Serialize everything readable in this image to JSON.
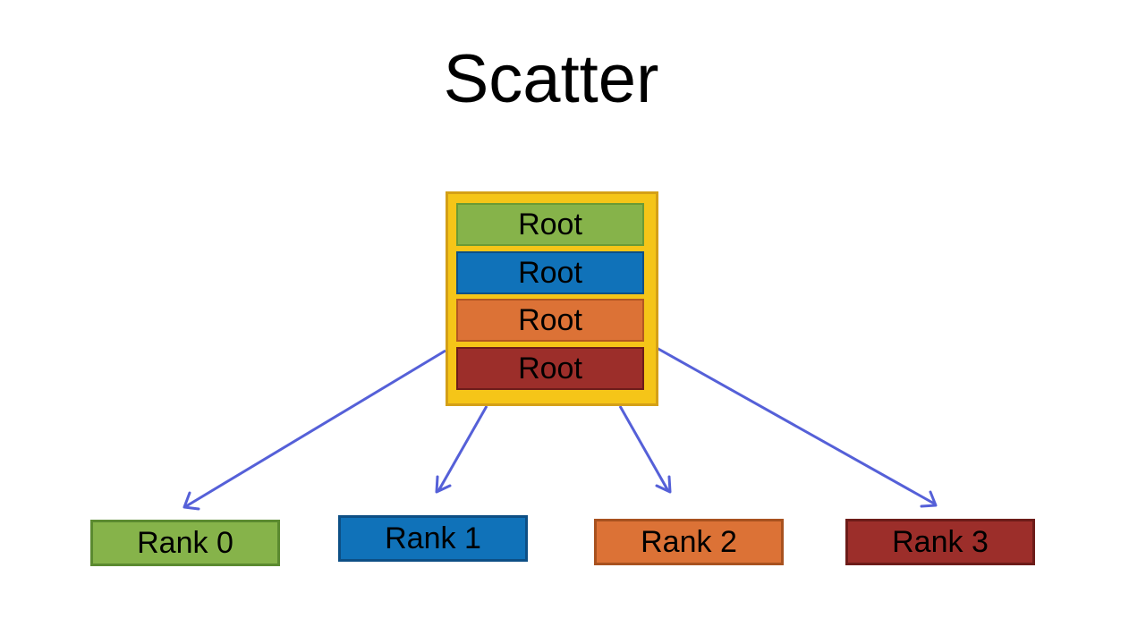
{
  "title": "Scatter",
  "colors": {
    "green": "#86b34a",
    "blue": "#1072b9",
    "orange": "#dc7236",
    "red": "#9c2e2a",
    "container_fill": "#f5c518",
    "container_border": "#d4a017",
    "arrow": "#5560d8"
  },
  "root_blocks": [
    {
      "label": "Root",
      "color": "green"
    },
    {
      "label": "Root",
      "color": "blue"
    },
    {
      "label": "Root",
      "color": "orange"
    },
    {
      "label": "Root",
      "color": "red"
    }
  ],
  "ranks": [
    {
      "label": "Rank 0",
      "color": "green"
    },
    {
      "label": "Rank 1",
      "color": "blue"
    },
    {
      "label": "Rank 2",
      "color": "orange"
    },
    {
      "label": "Rank 3",
      "color": "red"
    }
  ]
}
